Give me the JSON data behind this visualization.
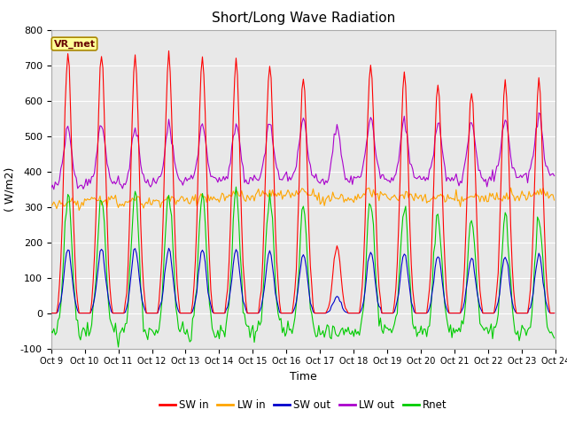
{
  "title": "Short/Long Wave Radiation",
  "xlabel": "Time",
  "ylabel": "( W/m2)",
  "ylim": [
    -100,
    800
  ],
  "xlim": [
    0,
    360
  ],
  "station_label": "VR_met",
  "background_color": "#e8e8e8",
  "tick_labels": [
    "Oct 9",
    "Oct 10",
    "Oct 11",
    "Oct 12",
    "Oct 13",
    "Oct 14",
    "Oct 15",
    "Oct 16",
    "Oct 17",
    "Oct 18",
    "Oct 19",
    "Oct 20",
    "Oct 21",
    "Oct 22",
    "Oct 23",
    "Oct 24"
  ],
  "tick_positions": [
    0,
    24,
    48,
    72,
    96,
    120,
    144,
    168,
    192,
    216,
    240,
    264,
    288,
    312,
    336,
    360
  ],
  "series_colors": {
    "SW_in": "#ff0000",
    "LW_in": "#ffa500",
    "SW_out": "#0000cc",
    "LW_out": "#aa00cc",
    "Rnet": "#00cc00"
  },
  "legend_labels": [
    "SW in",
    "LW in",
    "SW out",
    "LW out",
    "Rnet"
  ],
  "sw_in_peaks": [
    735,
    730,
    725,
    730,
    725,
    710,
    705,
    665,
    185,
    705,
    680,
    650,
    635,
    655,
    655
  ],
  "lw_in_base": [
    305,
    315,
    310,
    315,
    320,
    325,
    330,
    335,
    320,
    330,
    325,
    320,
    320,
    330,
    335
  ],
  "lw_out_base": [
    360,
    370,
    365,
    370,
    375,
    375,
    380,
    385,
    370,
    385,
    380,
    375,
    375,
    385,
    390
  ]
}
